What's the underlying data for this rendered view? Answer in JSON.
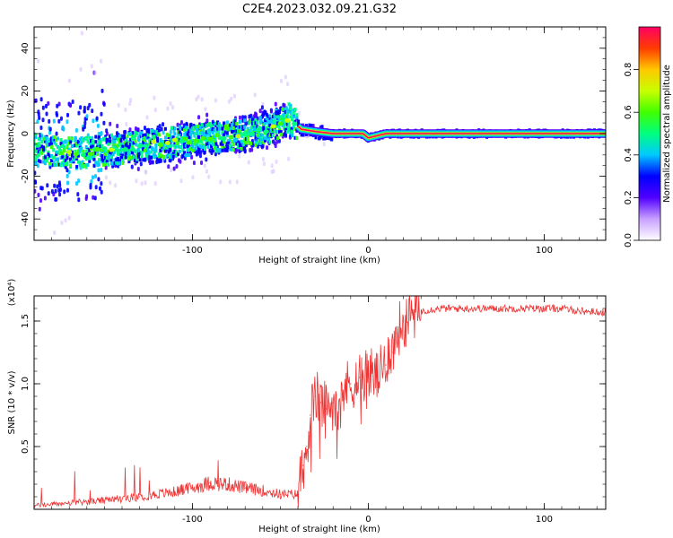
{
  "title": "C2E4.2023.032.09.21.G32",
  "chart_data": [
    {
      "type": "heatmap",
      "xlabel": "Height of straight line (km)",
      "ylabel": "Frequency (Hz)",
      "xlim": [
        -190,
        135
      ],
      "ylim": [
        -50,
        50
      ],
      "x_ticks": [
        -100,
        0,
        100
      ],
      "x_tick_labels": [
        "-100",
        "0",
        "100"
      ],
      "y_ticks": [
        -40,
        -20,
        0,
        20,
        40
      ],
      "y_tick_labels": [
        "-40",
        "-20",
        "0",
        "20",
        "40"
      ],
      "colorbar": {
        "label": "Normalized spectral amplitude",
        "range": [
          0,
          1
        ],
        "ticks": [
          0.0,
          0.2,
          0.4,
          0.6,
          0.8
        ],
        "tick_labels": [
          "0.0",
          "0.2",
          "0.4",
          "0.6",
          "0.8"
        ],
        "colors": [
          "#ffffff",
          "#c8a0ff",
          "#5000ff",
          "#0000ff",
          "#00c8ff",
          "#00ff80",
          "#40ff00",
          "#c8ff00",
          "#ffc800",
          "#ff3c00",
          "#ff0064"
        ]
      },
      "ridge": {
        "x": [
          -190,
          -170,
          -150,
          -130,
          -110,
          -90,
          -70,
          -55,
          -45,
          -38,
          -30,
          -20,
          -10,
          -3,
          0,
          5,
          10,
          20,
          135
        ],
        "frequency": [
          -7,
          -9,
          -8,
          -6,
          -4,
          -2,
          0,
          3,
          7,
          2,
          1,
          0,
          0,
          0,
          -2,
          -1,
          0,
          0,
          0
        ]
      }
    },
    {
      "type": "line",
      "xlabel": "Height of straight line (km)",
      "ylabel": "SNR (10 * v/v)",
      "y_scale_label": "(x10⁴)",
      "xlim": [
        -190,
        135
      ],
      "ylim": [
        0,
        1.7
      ],
      "x_ticks": [
        -100,
        0,
        100
      ],
      "x_tick_labels": [
        "-100",
        "0",
        "100"
      ],
      "y_ticks": [
        0.5,
        1.0,
        1.5
      ],
      "y_tick_labels": [
        "0.5",
        "1.0",
        "1.5"
      ],
      "color": "#ee3333",
      "x": [
        -190,
        -170,
        -150,
        -130,
        -110,
        -100,
        -90,
        -80,
        -70,
        -60,
        -50,
        -40,
        -37,
        -35,
        -33,
        -30,
        -27,
        -24,
        -20,
        -15,
        -10,
        -5,
        0,
        5,
        10,
        12,
        14,
        16,
        20,
        25,
        30,
        40,
        60,
        80,
        100,
        110,
        120,
        135
      ],
      "y": [
        0.03,
        0.05,
        0.07,
        0.1,
        0.14,
        0.17,
        0.21,
        0.2,
        0.17,
        0.15,
        0.12,
        0.12,
        0.35,
        0.5,
        0.75,
        0.9,
        0.85,
        0.8,
        0.85,
        0.95,
        1.0,
        1.05,
        1.1,
        1.05,
        1.15,
        1.3,
        1.25,
        1.4,
        1.5,
        1.55,
        1.58,
        1.6,
        1.6,
        1.6,
        1.6,
        1.6,
        1.58,
        1.57
      ]
    }
  ]
}
